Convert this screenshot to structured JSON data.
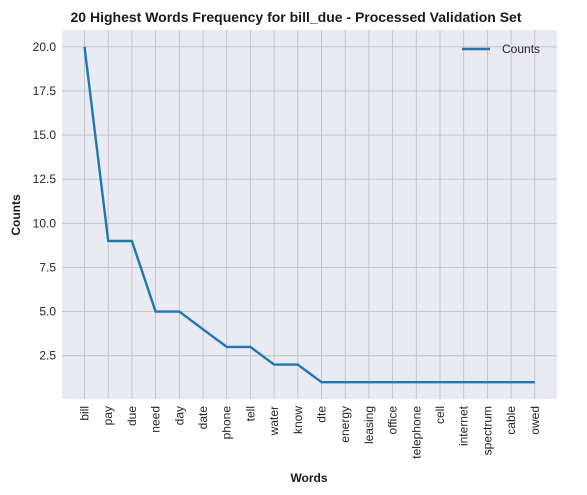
{
  "chart_data": {
    "type": "line",
    "title": "20 Highest Words Frequency for bill_due - Processed Validation Set",
    "xlabel": "Words",
    "ylabel": "Counts",
    "categories": [
      "bill",
      "pay",
      "due",
      "need",
      "day",
      "date",
      "phone",
      "tell",
      "water",
      "know",
      "dte",
      "energy",
      "leasing",
      "office",
      "telephone",
      "cell",
      "internet",
      "spectrum",
      "cable",
      "owed"
    ],
    "series": [
      {
        "name": "Counts",
        "values": [
          20,
          9,
          9,
          5,
          5,
          4,
          3,
          3,
          2,
          2,
          1,
          1,
          1,
          1,
          1,
          1,
          1,
          1,
          1,
          1
        ]
      }
    ],
    "yticks": [
      "2.5",
      "5.0",
      "7.5",
      "10.0",
      "12.5",
      "15.0",
      "17.5",
      "20.0"
    ],
    "ylim": [
      0.05,
      20.95
    ],
    "grid": true,
    "legend_position": "top-right",
    "colors": {
      "line": "#1f77b4",
      "background": "#eaeaf2",
      "grid": "#c0c0c8"
    }
  }
}
